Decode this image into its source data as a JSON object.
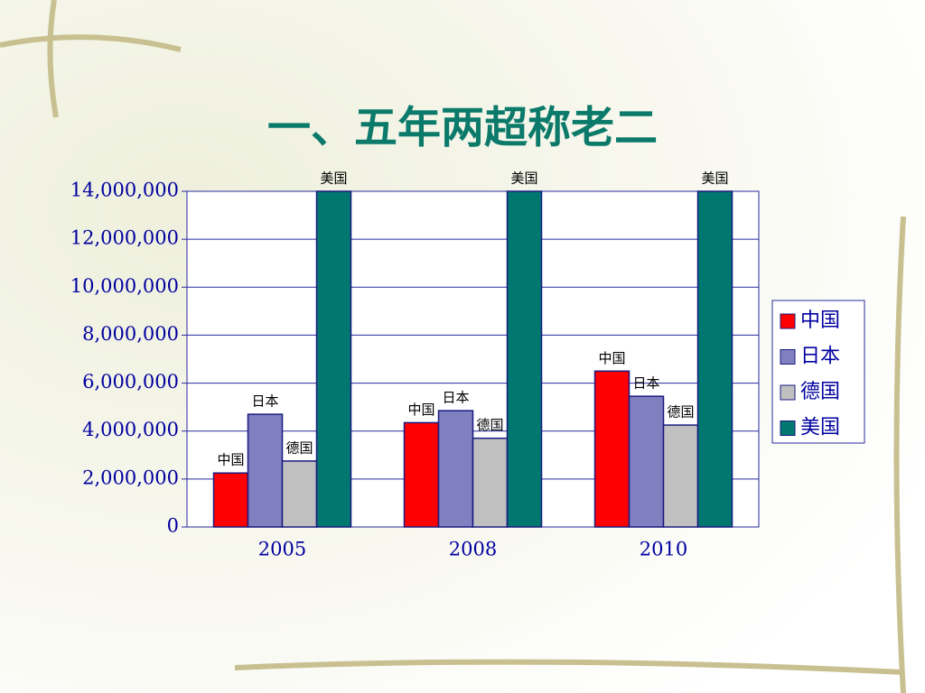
{
  "chart_data": {
    "type": "bar",
    "title": "一、五年两超称老二",
    "categories": [
      "2005",
      "2008",
      "2010"
    ],
    "series": [
      {
        "name": "中国",
        "color": "#ff0000",
        "values": [
          2250000,
          4350000,
          6500000
        ]
      },
      {
        "name": "日本",
        "color": "#8080c0",
        "values": [
          4700000,
          4850000,
          5450000
        ]
      },
      {
        "name": "德国",
        "color": "#c0c0c0",
        "values": [
          2750000,
          3700000,
          4250000
        ]
      },
      {
        "name": "美国",
        "color": "#007870",
        "values": [
          14000000,
          14000000,
          14000000
        ]
      }
    ],
    "ylim": [
      0,
      14000000
    ],
    "yticks": [
      0,
      {
        "value": 2000000,
        "label": "2,000,000"
      },
      {
        "value": 4000000,
        "label": "4,000,000"
      },
      {
        "value": 6000000,
        "label": "6,000,000"
      },
      {
        "value": 8000000,
        "label": "8,000,000"
      },
      {
        "value": 10000000,
        "label": "10,000,000"
      },
      {
        "value": 12000000,
        "label": "12,000,000"
      },
      {
        "value": 14000000,
        "label": "14,000,000"
      }
    ],
    "grid": true,
    "legend": "right"
  }
}
